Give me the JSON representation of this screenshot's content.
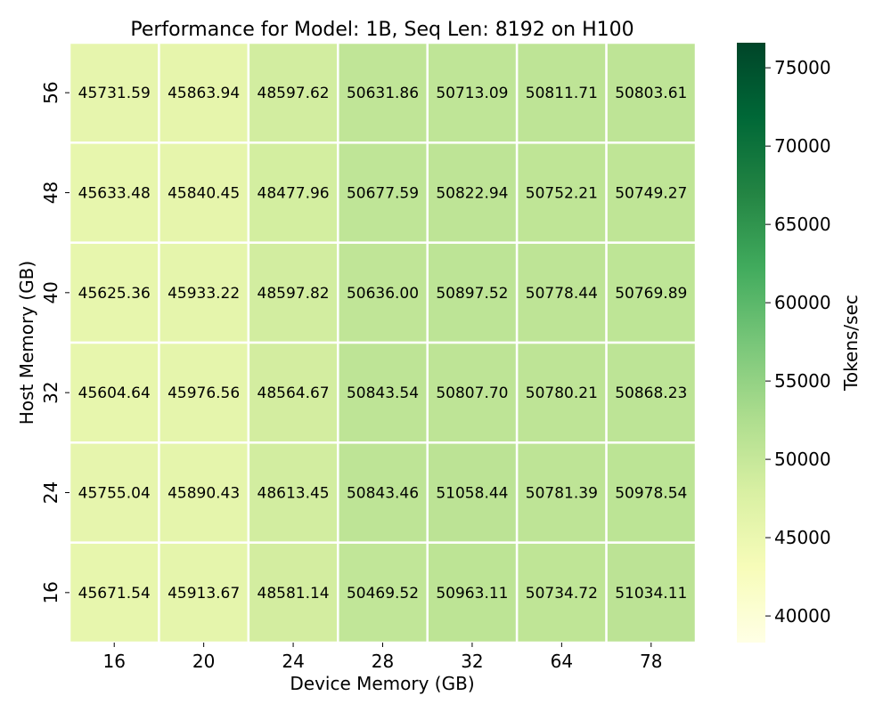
{
  "chart_data": {
    "type": "heatmap",
    "title": "Performance for Model: 1B, Seq Len: 8192 on H100",
    "xlabel": "Device Memory (GB)",
    "ylabel": "Host Memory (GB)",
    "x_categories": [
      "16",
      "20",
      "24",
      "28",
      "32",
      "64",
      "78"
    ],
    "y_categories": [
      "56",
      "48",
      "40",
      "32",
      "24",
      "16"
    ],
    "values": [
      [
        45731.59,
        45863.94,
        48597.62,
        50631.86,
        50713.09,
        50811.71,
        50803.61
      ],
      [
        45633.48,
        45840.45,
        48477.96,
        50677.59,
        50822.94,
        50752.21,
        50749.27
      ],
      [
        45625.36,
        45933.22,
        48597.82,
        50636.0,
        50897.52,
        50778.44,
        50769.89
      ],
      [
        45604.64,
        45976.56,
        48564.67,
        50843.54,
        50807.7,
        50780.21,
        50868.23
      ],
      [
        45755.04,
        45890.43,
        48613.45,
        50843.46,
        51058.44,
        50781.39,
        50978.54
      ],
      [
        45671.54,
        45913.67,
        48581.14,
        50469.52,
        50963.11,
        50734.72,
        51034.11
      ]
    ],
    "value_labels": [
      [
        "45731.59",
        "45863.94",
        "48597.62",
        "50631.86",
        "50713.09",
        "50811.71",
        "50803.61"
      ],
      [
        "45633.48",
        "45840.45",
        "48477.96",
        "50677.59",
        "50822.94",
        "50752.21",
        "50749.27"
      ],
      [
        "45625.36",
        "45933.22",
        "48597.82",
        "50636.00",
        "50897.52",
        "50778.44",
        "50769.89"
      ],
      [
        "45604.64",
        "45976.56",
        "48564.67",
        "50843.54",
        "50807.70",
        "50780.21",
        "50868.23"
      ],
      [
        "45755.04",
        "45890.43",
        "48613.45",
        "50843.46",
        "51058.44",
        "50781.39",
        "50978.54"
      ],
      [
        "45671.54",
        "45913.67",
        "48581.14",
        "50469.52",
        "50963.11",
        "50734.72",
        "51034.11"
      ]
    ],
    "colorbar": {
      "label": "Tokens/sec",
      "colormap": "YlGn",
      "range": [
        38300,
        76600
      ],
      "ticks": [
        40000,
        45000,
        50000,
        55000,
        60000,
        65000,
        70000,
        75000
      ],
      "tick_labels": [
        "40000",
        "45000",
        "50000",
        "55000",
        "60000",
        "65000",
        "70000",
        "75000"
      ]
    },
    "grid": false,
    "cell_borders": "#ffffff",
    "colormap_stops": [
      "#ffffe5",
      "#f7fcb9",
      "#d9f0a3",
      "#addd8e",
      "#78c679",
      "#41ab5d",
      "#238443",
      "#006837",
      "#004529"
    ]
  }
}
